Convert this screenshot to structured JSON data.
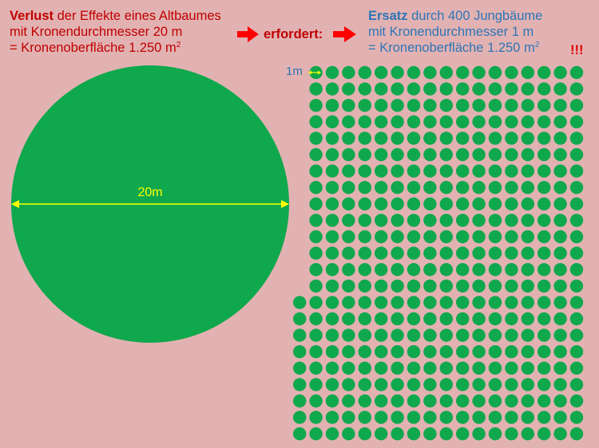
{
  "left_block": {
    "line1_bold": "Verlust",
    "line1_rest": " der Effekte eines Altbaumes",
    "line2": "mit Kronendurchmesser 20 m",
    "line3_prefix": "= Kronenoberfläche 1.250 m",
    "line3_sup": "2"
  },
  "middle_label": "erfordert:",
  "right_block": {
    "line1_bold": "Ersatz",
    "line1_rest": " durch 400 Jungbäume",
    "line2": "mit Kronendurchmesser 1 m",
    "line3_prefix": "= Kronenoberfläche 1.250 m",
    "line3_sup": "2"
  },
  "exclamation": "!!!",
  "big_circle_label": "20m",
  "small_circle_label": "1m",
  "colors": {
    "background": "#e2b2b2",
    "tree_green": "#0fa84d",
    "arrow_red": "#ff0000",
    "measure_yellow": "#ffff00",
    "text_red": "#c00000",
    "text_blue": "#2e75b6"
  }
}
